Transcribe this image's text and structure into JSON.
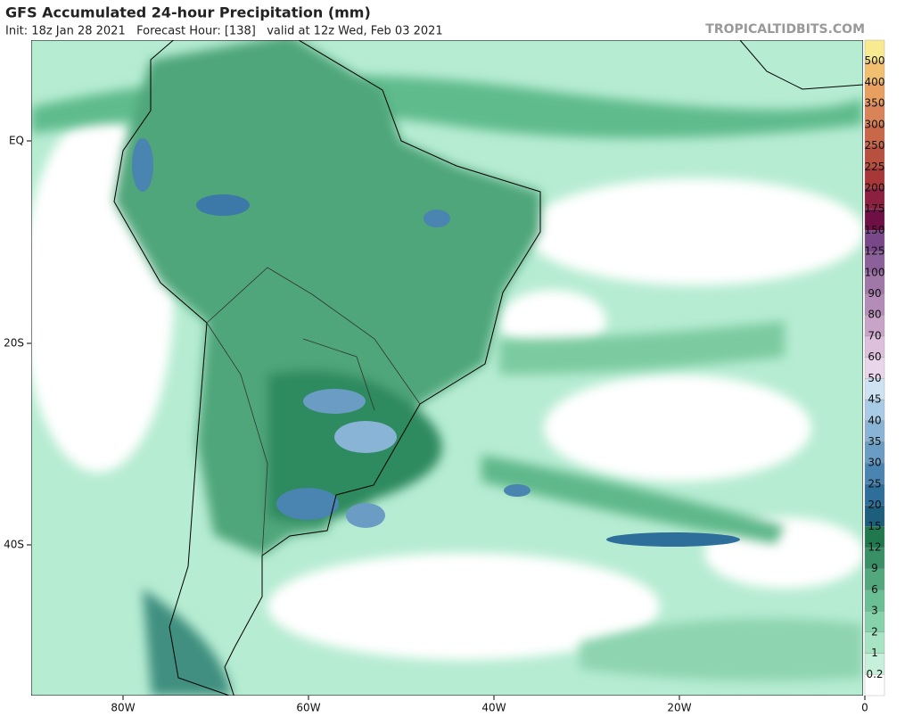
{
  "header": {
    "title": "GFS Accumulated 24-hour Precipitation (mm)",
    "subtitle": "Init: 18z Jan 28 2021   Forecast Hour: [138]   valid at 12z Wed, Feb 03 2021",
    "site": "TROPICALTIDBITS.COM"
  },
  "map": {
    "lon_labels": [
      "80W",
      "60W",
      "40W",
      "20W",
      "0"
    ],
    "lat_labels": [
      "EQ",
      "20S",
      "40S"
    ]
  },
  "colorbar": {
    "labels": [
      "0.2",
      "1",
      "2",
      "3",
      "6",
      "9",
      "12",
      "15",
      "20",
      "25",
      "30",
      "35",
      "40",
      "45",
      "50",
      "60",
      "70",
      "80",
      "90",
      "100",
      "125",
      "150",
      "175",
      "200",
      "225",
      "250",
      "300",
      "350",
      "400",
      "500"
    ],
    "colors": [
      "#ffffff",
      "#c6f0da",
      "#a6e4c4",
      "#86d2aa",
      "#6abf94",
      "#52a87c",
      "#3a9066",
      "#20784f",
      "#1b5f7c",
      "#2e6e9a",
      "#4a84b0",
      "#6a9cc4",
      "#8ab4d6",
      "#a8cce6",
      "#cde3f3",
      "#ead6ea",
      "#dcc0dc",
      "#c8a4c8",
      "#b48cb8",
      "#a078a8",
      "#8c6098",
      "#784888",
      "#6e0f45",
      "#8c2040",
      "#a83838",
      "#b85040",
      "#c86848",
      "#d88458",
      "#e8a060",
      "#f0c070",
      "#f8ea90"
    ]
  }
}
